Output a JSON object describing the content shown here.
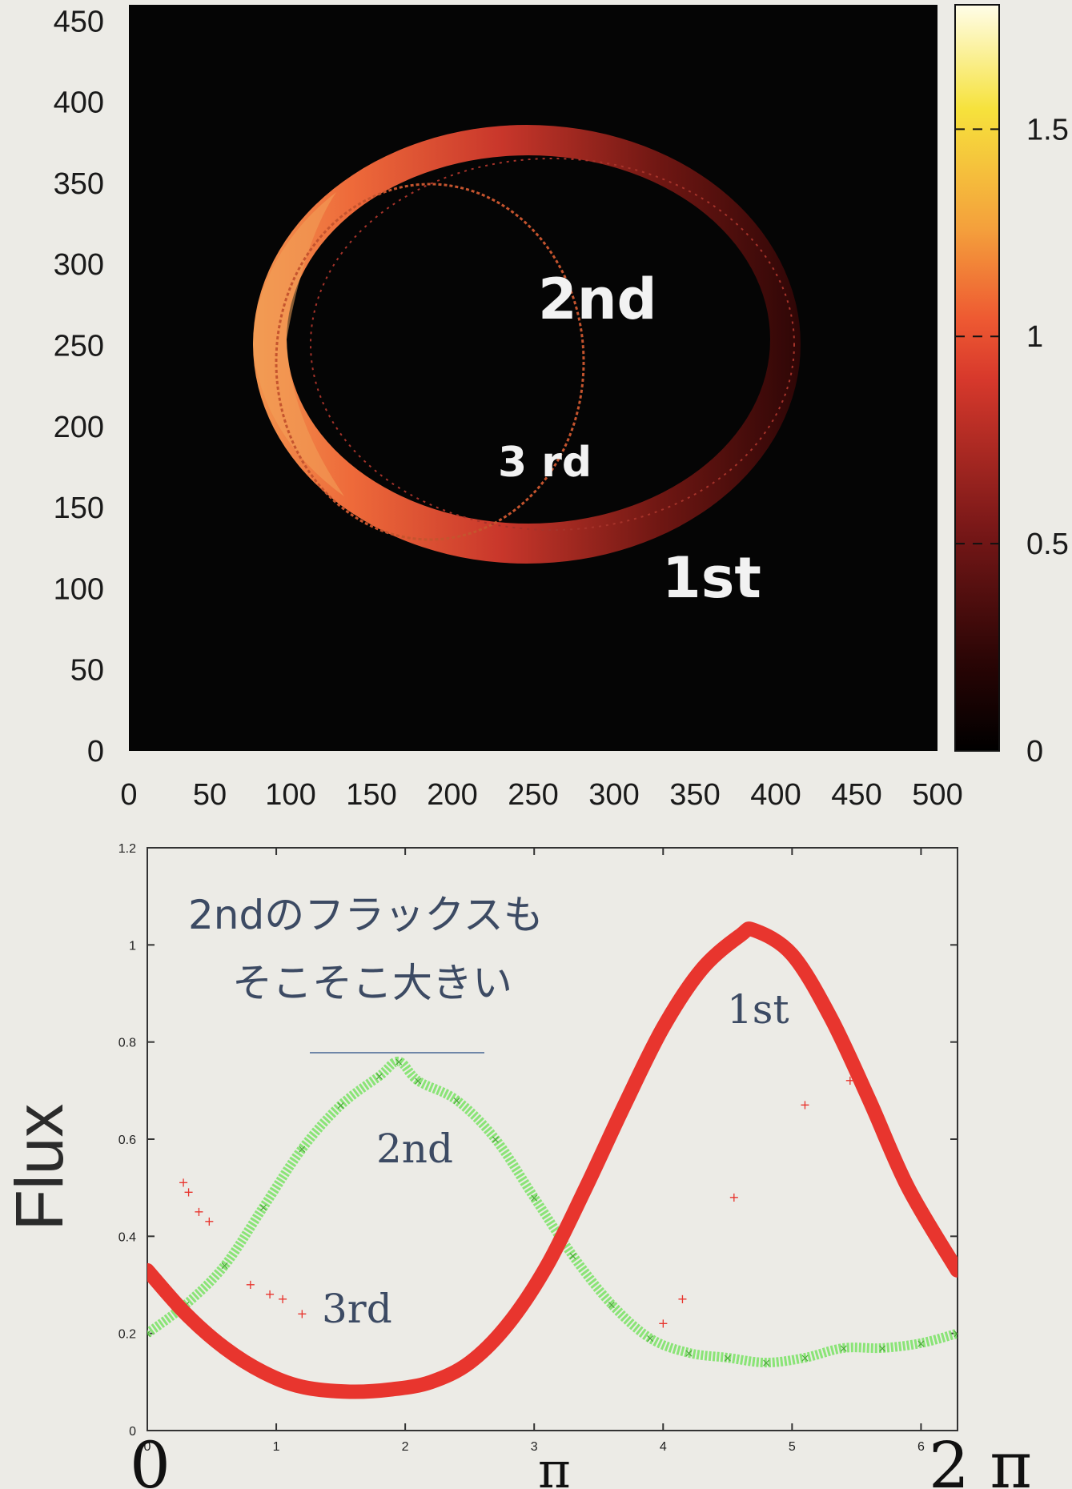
{
  "chart_data": [
    {
      "type": "heatmap",
      "title": "",
      "xlabel": "",
      "ylabel": "",
      "xlim": [
        0,
        500
      ],
      "ylim": [
        0,
        460
      ],
      "x_ticks": [
        "0",
        "50",
        "100",
        "150",
        "200",
        "250",
        "300",
        "350",
        "400",
        "450",
        "500"
      ],
      "y_ticks": [
        "0",
        "50",
        "100",
        "150",
        "200",
        "250",
        "300",
        "350",
        "400",
        "450"
      ],
      "colorbar": {
        "range": [
          0,
          1.8
        ],
        "ticks": [
          "0",
          "0.5",
          "1",
          "1.5"
        ],
        "colors": [
          "#000000",
          "#6b0f0f",
          "#e8402e",
          "#f39a3a",
          "#f6e03a",
          "#fffbd6"
        ]
      },
      "rings": [
        {
          "name": "1st",
          "center": [
            242,
            247
          ],
          "rx_outer": 170,
          "ry_outer": 143,
          "rx_inner": 151,
          "ry_inner": 120,
          "intensity_left": 1.0,
          "intensity_right": 0.15
        },
        {
          "name": "2nd",
          "center": [
            245,
            256
          ],
          "rx": 96,
          "ry": 110,
          "intensity": 0.5
        }
      ],
      "annotations": [
        "2nd",
        "3 rd",
        "1st"
      ]
    },
    {
      "type": "line",
      "title": "",
      "xlabel": "",
      "ylabel": "Flux",
      "xlim": [
        0,
        6.283
      ],
      "ylim": [
        0,
        1.2
      ],
      "x_ticks": [
        "0",
        "1",
        "2",
        "3",
        "4",
        "5",
        "6"
      ],
      "y_ticks": [
        "0",
        "0.2",
        "0.4",
        "0.6",
        "0.8",
        "1",
        "1.2"
      ],
      "x_axis_marks": [
        "0",
        "π",
        "2 π"
      ],
      "series": [
        {
          "name": "1st",
          "color": "#e8352e",
          "x": [
            0,
            0.3,
            0.6,
            0.9,
            1.2,
            1.57,
            1.9,
            2.2,
            2.5,
            2.8,
            3.1,
            3.4,
            3.7,
            4.0,
            4.3,
            4.6,
            4.71,
            5.0,
            5.3,
            5.6,
            5.9,
            6.28
          ],
          "y": [
            0.33,
            0.24,
            0.17,
            0.12,
            0.09,
            0.08,
            0.085,
            0.1,
            0.14,
            0.22,
            0.34,
            0.5,
            0.67,
            0.83,
            0.95,
            1.02,
            1.03,
            0.98,
            0.85,
            0.68,
            0.5,
            0.33
          ]
        },
        {
          "name": "2nd",
          "color": "#7fe36a",
          "x": [
            0,
            0.3,
            0.6,
            0.9,
            1.2,
            1.5,
            1.8,
            1.95,
            2.1,
            2.4,
            2.7,
            3.0,
            3.3,
            3.6,
            3.9,
            4.2,
            4.5,
            4.8,
            5.1,
            5.4,
            5.7,
            6.0,
            6.28
          ],
          "y": [
            0.2,
            0.26,
            0.34,
            0.46,
            0.58,
            0.67,
            0.73,
            0.76,
            0.72,
            0.68,
            0.6,
            0.48,
            0.36,
            0.26,
            0.19,
            0.16,
            0.15,
            0.14,
            0.15,
            0.17,
            0.17,
            0.18,
            0.2
          ]
        },
        {
          "name": "3rd",
          "color": "#e8352e",
          "x": [
            0.28,
            0.32,
            0.4,
            0.48,
            0.8,
            0.95,
            1.05,
            1.2,
            4.0,
            4.15,
            4.55,
            5.1,
            5.45
          ],
          "y": [
            0.51,
            0.49,
            0.45,
            0.43,
            0.3,
            0.28,
            0.27,
            0.24,
            0.22,
            0.27,
            0.48,
            0.67,
            0.72
          ]
        }
      ],
      "annotations": [
        "2ndのフラックスも",
        "そこそこ大きい",
        "1st",
        "2nd",
        "3rd"
      ]
    }
  ]
}
